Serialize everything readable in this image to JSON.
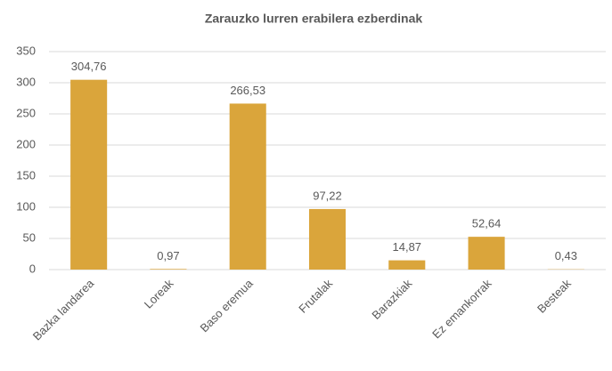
{
  "chart_data": {
    "type": "bar",
    "title": "Zarauzko lurren erabilera ezberdinak",
    "categories": [
      "Bazka landarea",
      "Loreak",
      "Baso eremua",
      "Frutalak",
      "Barazkiak",
      "Ez emankorrak",
      "Besteak"
    ],
    "values": [
      304.76,
      0.97,
      266.53,
      97.22,
      14.87,
      52.64,
      0.43
    ],
    "value_labels": [
      "304,76",
      "0,97",
      "266,53",
      "97,22",
      "14,87",
      "52,64",
      "0,43"
    ],
    "color": "#daa53b",
    "ylim": [
      0,
      350
    ],
    "yticks": [
      0,
      50,
      100,
      150,
      200,
      250,
      300,
      350
    ],
    "grid": true
  }
}
